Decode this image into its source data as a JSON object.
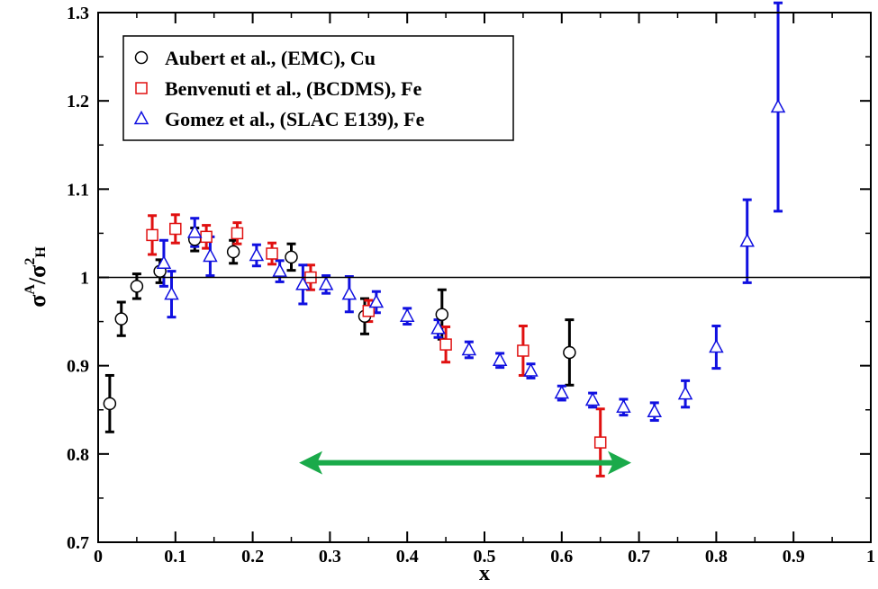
{
  "chart_data": {
    "type": "scatter",
    "xlabel": "x",
    "ylabel": "σ A / σ ²H",
    "ylabel_parts": {
      "sigma_num": "σ",
      "sup_num": "A",
      "slash": "/",
      "sigma_den": "σ",
      "sup_den": "2",
      "sub_den": "H"
    },
    "xlim": [
      0,
      1
    ],
    "ylim": [
      0.7,
      1.3
    ],
    "xticks": [
      0,
      0.1,
      0.2,
      0.3,
      0.4,
      0.5,
      0.6,
      0.7,
      0.8,
      0.9,
      1
    ],
    "xtick_labels": [
      "0",
      "0.1",
      "0.2",
      "0.3",
      "0.4",
      "0.5",
      "0.6",
      "0.7",
      "0.8",
      "0.9",
      "1"
    ],
    "yticks": [
      0.7,
      0.8,
      0.9,
      1.0,
      1.1,
      1.2,
      1.3
    ],
    "ytick_labels": [
      "0.7",
      "0.8",
      "0.9",
      "1",
      "1.1",
      "1.2",
      "1.3"
    ],
    "grid": false,
    "legend_position": "top-left",
    "reference_line": {
      "y": 1.0,
      "color": "#000000"
    },
    "annotation": {
      "type": "double-arrow",
      "x_start": 0.26,
      "x_end": 0.69,
      "y": 0.79,
      "color": "#1aaa4a"
    },
    "series": [
      {
        "name": "Aubert et al.,  (EMC), Cu",
        "marker": "circle",
        "color": "#000000",
        "points": [
          {
            "x": 0.015,
            "y": 0.857,
            "err": 0.032
          },
          {
            "x": 0.03,
            "y": 0.953,
            "err": 0.019
          },
          {
            "x": 0.05,
            "y": 0.99,
            "err": 0.014
          },
          {
            "x": 0.08,
            "y": 1.007,
            "err": 0.013
          },
          {
            "x": 0.125,
            "y": 1.043,
            "err": 0.013
          },
          {
            "x": 0.175,
            "y": 1.029,
            "err": 0.013
          },
          {
            "x": 0.25,
            "y": 1.023,
            "err": 0.015
          },
          {
            "x": 0.345,
            "y": 0.956,
            "err": 0.02
          },
          {
            "x": 0.445,
            "y": 0.958,
            "err": 0.028
          },
          {
            "x": 0.61,
            "y": 0.915,
            "err": 0.037
          }
        ]
      },
      {
        "name": "Benvenuti et al., (BCDMS), Fe",
        "marker": "square",
        "color": "#e01010",
        "points": [
          {
            "x": 0.07,
            "y": 1.048,
            "err": 0.022
          },
          {
            "x": 0.1,
            "y": 1.055,
            "err": 0.016
          },
          {
            "x": 0.14,
            "y": 1.046,
            "err": 0.013
          },
          {
            "x": 0.18,
            "y": 1.05,
            "err": 0.012
          },
          {
            "x": 0.225,
            "y": 1.027,
            "err": 0.012
          },
          {
            "x": 0.275,
            "y": 1.0,
            "err": 0.014
          },
          {
            "x": 0.35,
            "y": 0.962,
            "err": 0.012
          },
          {
            "x": 0.45,
            "y": 0.924,
            "err": 0.02
          },
          {
            "x": 0.55,
            "y": 0.917,
            "err": 0.028
          },
          {
            "x": 0.65,
            "y": 0.813,
            "err": 0.038
          }
        ]
      },
      {
        "name": "Gomez et al., (SLAC E139), Fe",
        "marker": "triangle",
        "color": "#1010e0",
        "points": [
          {
            "x": 0.085,
            "y": 1.016,
            "err": 0.026
          },
          {
            "x": 0.095,
            "y": 0.981,
            "err": 0.026
          },
          {
            "x": 0.125,
            "y": 1.051,
            "err": 0.016
          },
          {
            "x": 0.145,
            "y": 1.024,
            "err": 0.022
          },
          {
            "x": 0.205,
            "y": 1.025,
            "err": 0.012
          },
          {
            "x": 0.235,
            "y": 1.007,
            "err": 0.012
          },
          {
            "x": 0.265,
            "y": 0.992,
            "err": 0.022
          },
          {
            "x": 0.295,
            "y": 0.992,
            "err": 0.01
          },
          {
            "x": 0.325,
            "y": 0.981,
            "err": 0.02
          },
          {
            "x": 0.36,
            "y": 0.972,
            "err": 0.012
          },
          {
            "x": 0.4,
            "y": 0.956,
            "err": 0.009
          },
          {
            "x": 0.44,
            "y": 0.942,
            "err": 0.01
          },
          {
            "x": 0.48,
            "y": 0.918,
            "err": 0.009
          },
          {
            "x": 0.52,
            "y": 0.906,
            "err": 0.008
          },
          {
            "x": 0.56,
            "y": 0.894,
            "err": 0.008
          },
          {
            "x": 0.6,
            "y": 0.869,
            "err": 0.008
          },
          {
            "x": 0.64,
            "y": 0.861,
            "err": 0.008
          },
          {
            "x": 0.68,
            "y": 0.853,
            "err": 0.009
          },
          {
            "x": 0.72,
            "y": 0.848,
            "err": 0.01
          },
          {
            "x": 0.76,
            "y": 0.868,
            "err": 0.015
          },
          {
            "x": 0.8,
            "y": 0.921,
            "err": 0.024
          },
          {
            "x": 0.84,
            "y": 1.041,
            "err": 0.047
          },
          {
            "x": 0.88,
            "y": 1.193,
            "err": 0.118
          }
        ]
      }
    ]
  }
}
